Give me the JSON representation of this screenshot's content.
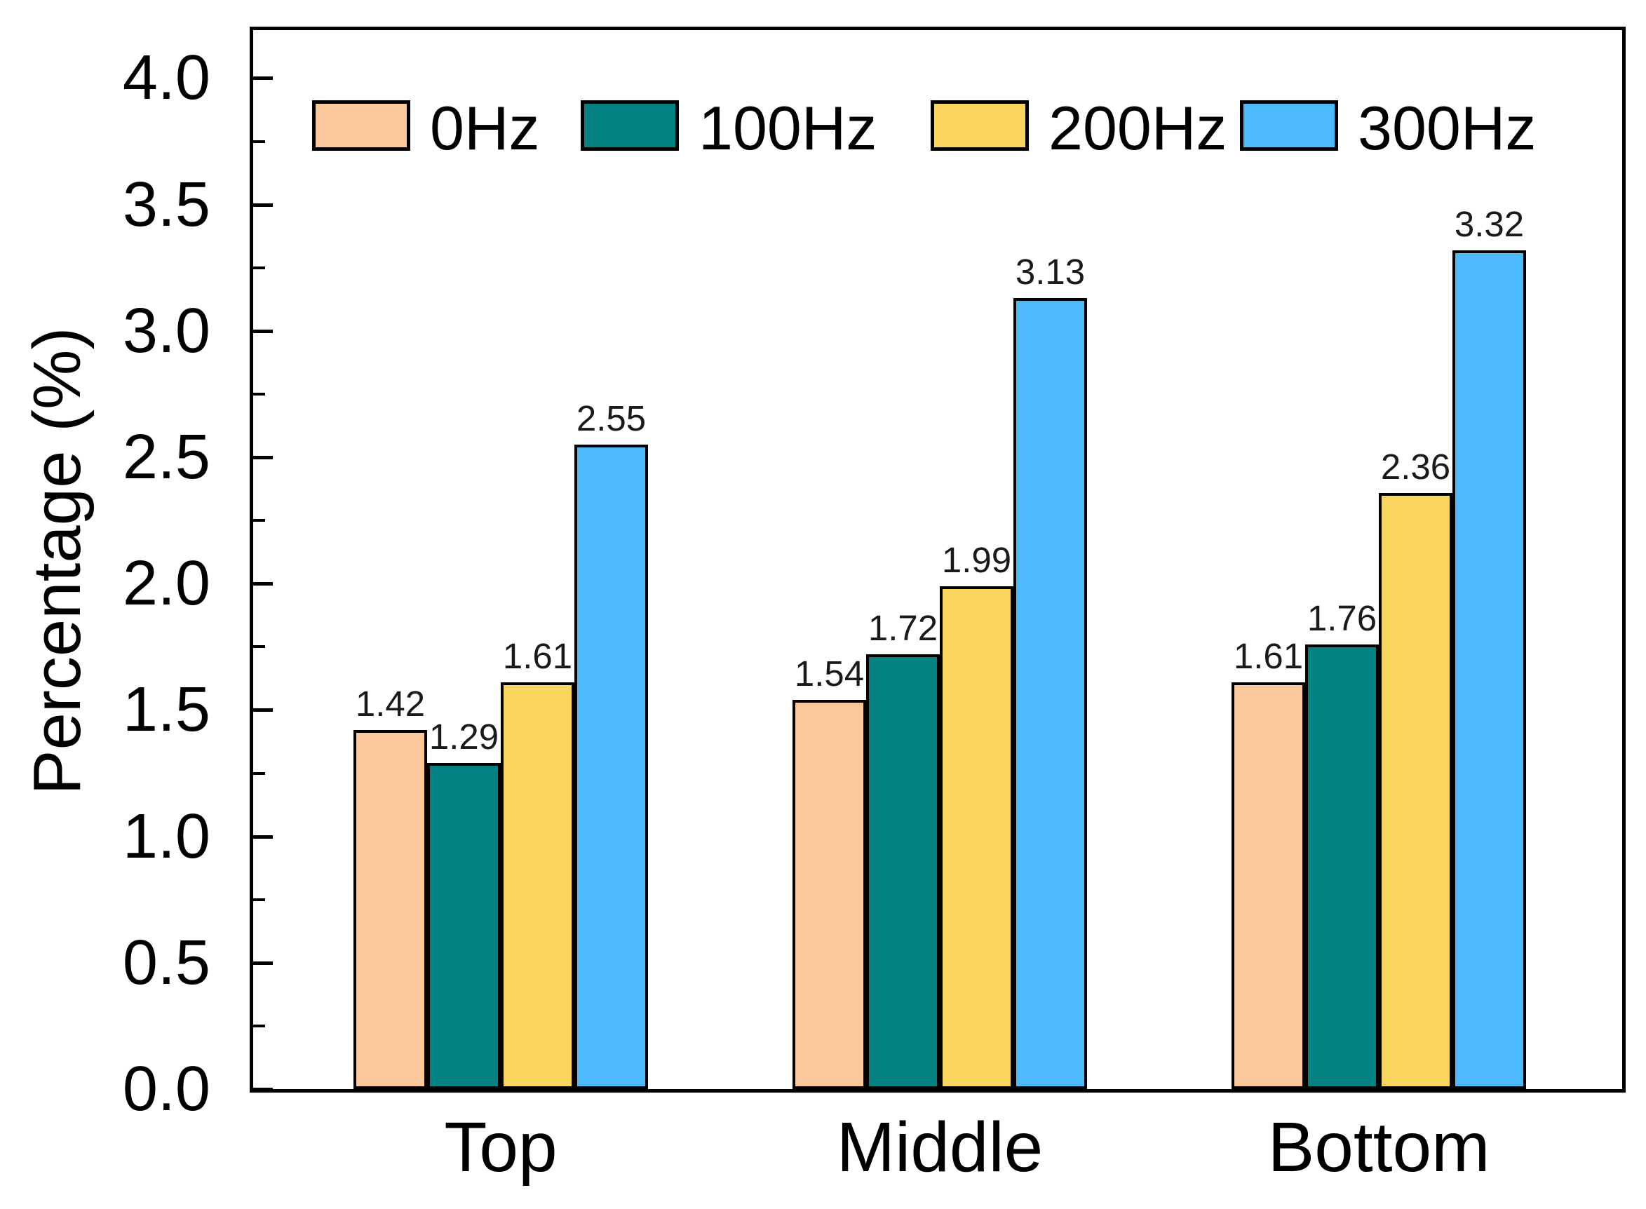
{
  "chart_data": {
    "type": "bar",
    "title": "",
    "xlabel": "",
    "ylabel": "Percentage (%)",
    "categories": [
      "Top",
      "Middle",
      "Bottom"
    ],
    "series": [
      {
        "name": "0Hz",
        "color": "#FAC89B",
        "values": [
          1.42,
          1.54,
          1.61
        ]
      },
      {
        "name": "100Hz",
        "color": "#048181",
        "values": [
          1.29,
          1.72,
          1.76
        ]
      },
      {
        "name": "200Hz",
        "color": "#FBD65E",
        "values": [
          1.61,
          1.99,
          2.36
        ]
      },
      {
        "name": "300Hz",
        "color": "#4DBBFB",
        "values": [
          2.55,
          3.13,
          3.32
        ]
      }
    ],
    "ylim": [
      0,
      4.19
    ],
    "yticks": [
      0.0,
      0.5,
      1.0,
      1.5,
      2.0,
      2.5,
      3.0,
      3.5,
      4.0
    ],
    "ytick_labels": [
      "0.0",
      "0.5",
      "1.0",
      "1.5",
      "2.0",
      "2.5",
      "3.0",
      "3.5",
      "4.0"
    ],
    "minor_tick_step": 0.25,
    "value_label_decimals": 2,
    "bar_outline_color": "#000000",
    "axis_color": "#000000",
    "grid": false,
    "legend_position": "top-inside"
  }
}
